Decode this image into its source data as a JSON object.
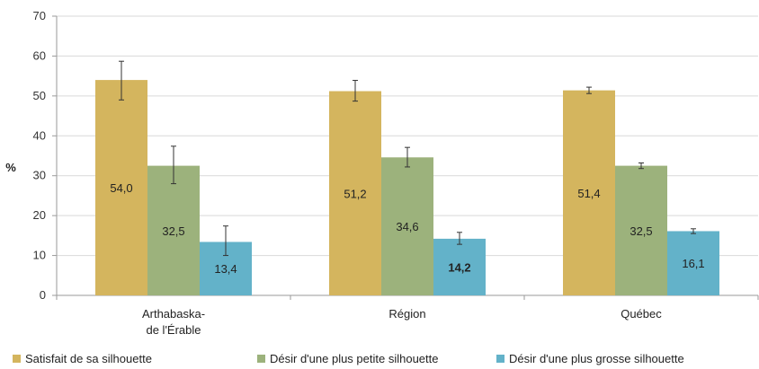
{
  "chart_data": {
    "type": "bar",
    "ylabel": "%",
    "ylim": [
      0,
      70
    ],
    "yticks": [
      0,
      10,
      20,
      30,
      40,
      50,
      60,
      70
    ],
    "grid": true,
    "legend_position": "bottom",
    "categories": [
      "Arthabaska-\nde l'Érable",
      "Région",
      "Québec"
    ],
    "series": [
      {
        "name": "Satisfait de sa silhouette",
        "color": "#d4b55e",
        "values": [
          54.0,
          51.2,
          51.4
        ],
        "labels": [
          "54,0",
          "51,2",
          "51,4"
        ],
        "bold": [
          false,
          false,
          false
        ],
        "error_low": [
          49.0,
          48.7,
          50.6
        ],
        "error_high": [
          58.7,
          53.9,
          52.2
        ]
      },
      {
        "name": "Désir d'une plus petite silhouette",
        "color": "#9cb27c",
        "values": [
          32.5,
          34.6,
          32.5
        ],
        "labels": [
          "32,5",
          "34,6",
          "32,5"
        ],
        "bold": [
          false,
          false,
          false
        ],
        "error_low": [
          28.0,
          32.2,
          31.8
        ],
        "error_high": [
          37.4,
          37.1,
          33.2
        ]
      },
      {
        "name": "Désir d'une plus grosse silhouette",
        "color": "#63b2c9",
        "values": [
          13.4,
          14.2,
          16.1
        ],
        "labels": [
          "13,4",
          "14,2",
          "16,1"
        ],
        "bold": [
          false,
          true,
          false
        ],
        "error_low": [
          10.0,
          12.8,
          15.5
        ],
        "error_high": [
          17.4,
          15.8,
          16.7
        ]
      }
    ]
  }
}
